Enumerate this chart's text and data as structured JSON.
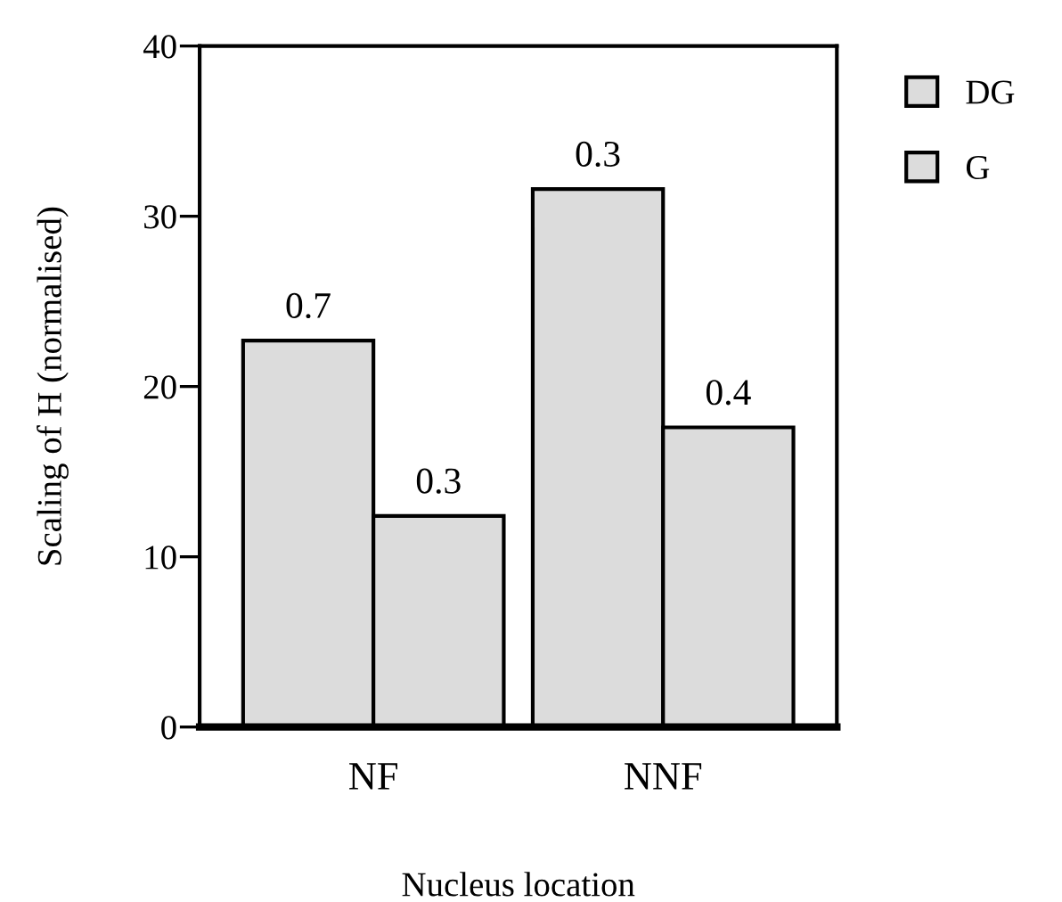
{
  "chart_data": {
    "type": "bar",
    "xlabel": "Nucleus location",
    "ylabel": "Scaling of H (normalised)",
    "categories": [
      "NF",
      "NNF"
    ],
    "series": [
      {
        "name": "DG",
        "color": "#dcdcdc",
        "values": [
          22.7,
          31.6
        ]
      },
      {
        "name": "G",
        "color": "#dcdcdc",
        "values": [
          12.4,
          17.6
        ]
      }
    ],
    "annotations": [
      {
        "text": "0.7",
        "x": "NF",
        "y": 22.7
      },
      {
        "text": "0.3",
        "x": "NF",
        "y": 12.4
      },
      {
        "text": "0.3",
        "x": "NNF",
        "y": 31.6
      },
      {
        "text": "0.4",
        "x": "NNF",
        "y": 17.6
      }
    ],
    "ylim": [
      0,
      40
    ],
    "yticks": [
      0,
      10,
      20,
      30,
      40
    ],
    "grid": false,
    "legend": "top right"
  }
}
